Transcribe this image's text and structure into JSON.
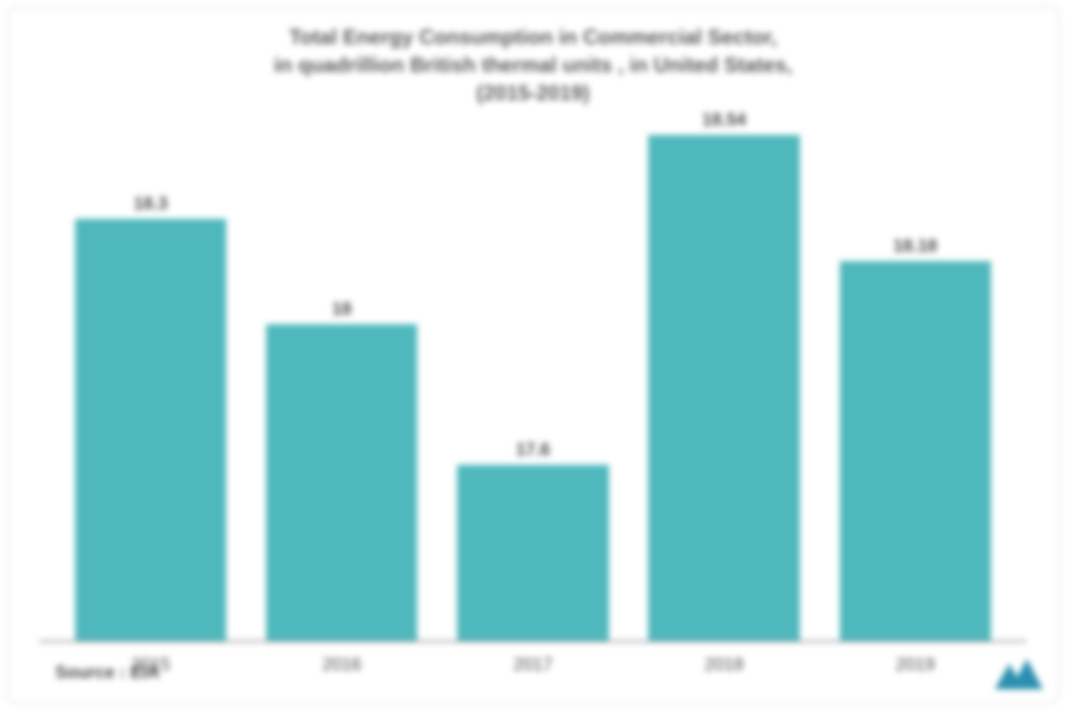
{
  "chart": {
    "type": "bar",
    "title_line1": "Total Energy Consumption in Commercial Sector,",
    "title_line2": "in quadrillion British thermal units , in United States,",
    "title_line3": "(2015-2019)",
    "title_fontsize": 26,
    "title_color": "#5a5a5a",
    "categories": [
      "2015",
      "2016",
      "2017",
      "2018",
      "2019"
    ],
    "values": [
      18.3,
      18,
      17.6,
      18.54,
      18.18
    ],
    "bar_labels": [
      "18.3",
      "18",
      "17.6",
      "18.54",
      "18.18"
    ],
    "bar_color": "#4fb8bd",
    "label_color": "#4a4a4a",
    "label_fontsize": 22,
    "ylim": [
      17.1,
      18.6
    ],
    "background_color": "#ffffff",
    "axis_line_color": "#888888",
    "border_color": "#d0d0d0",
    "bar_width_pct": 88,
    "source_text": "Source : EIA",
    "logo_color": "#2a8faf"
  }
}
